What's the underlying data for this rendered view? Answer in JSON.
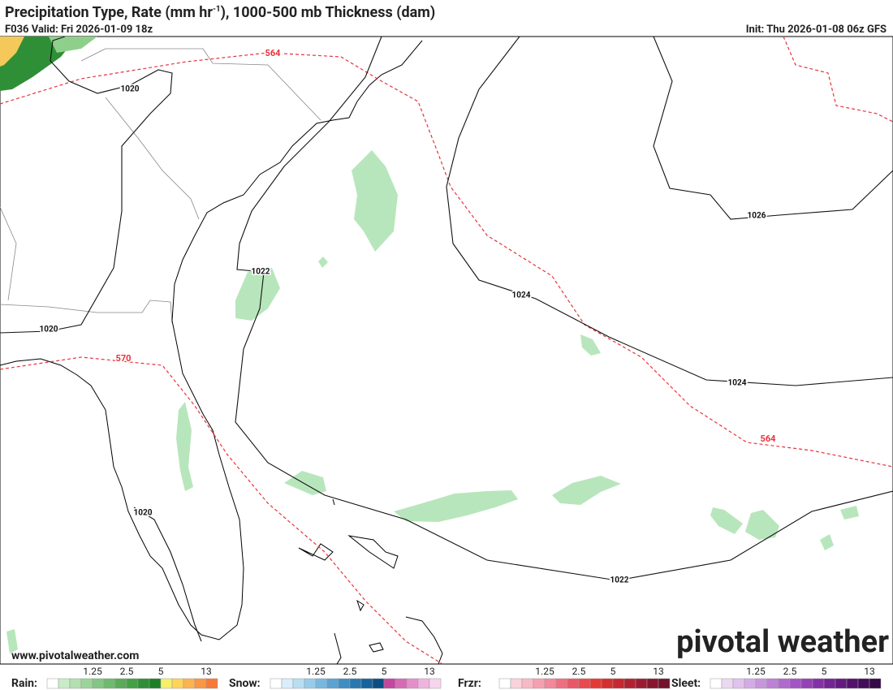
{
  "header": {
    "title_pre": "Precipitation Type, Rate (mm hr",
    "title_sup": "-1",
    "title_post": "), 1000-500 mb Thickness (dam)",
    "valid": "F036 Valid: Fri 2026-01-09 18z",
    "init": "Init: Thu 2026-01-08 06z GFS"
  },
  "map": {
    "isobar_labels": [
      "1020",
      "1020",
      "1020",
      "1022",
      "1022",
      "1024",
      "1024",
      "1026"
    ],
    "thickness_labels": [
      "564",
      "564",
      "570"
    ]
  },
  "footer": {
    "url": "www.pivotalweather.com",
    "logo": "pivotal weather"
  },
  "legend": {
    "groups": [
      {
        "label": "Rain:",
        "ticks": [
          "1.25",
          "2.5",
          "5",
          "13"
        ],
        "colors": [
          "#ffffff",
          "#c8ecc8",
          "#b2e0b0",
          "#9bd49a",
          "#84c684",
          "#6fba6e",
          "#5aaa5a",
          "#46a046",
          "#2f8f36",
          "#1d7e28",
          "#f5f06a",
          "#fdd35a",
          "#fcb451",
          "#f99744",
          "#f77a38"
        ]
      },
      {
        "label": "Snow:",
        "ticks": [
          "1.25",
          "2.5",
          "5",
          "13"
        ],
        "colors": [
          "#ffffff",
          "#d8eefa",
          "#b9def3",
          "#98cbea",
          "#78b8e0",
          "#5aa3d3",
          "#3f8dc3",
          "#2a78b0",
          "#17639b",
          "#0b4e84",
          "#c3479e",
          "#d66bb5",
          "#e58fca",
          "#f0b3de",
          "#f8d5ee"
        ]
      },
      {
        "label": "Frzr:",
        "ticks": [
          "1.25",
          "2.5",
          "5",
          "13"
        ],
        "colors": [
          "#ffffff",
          "#fbd2dc",
          "#f8b9c6",
          "#f5a0b0",
          "#f2889a",
          "#ee7080",
          "#ea5868",
          "#e84a4e",
          "#e33a36",
          "#d42e2e",
          "#c42830",
          "#b02232",
          "#9b1c32",
          "#861630",
          "#72122c"
        ]
      },
      {
        "label": "Sleet:",
        "ticks": [
          "1.25",
          "2.5",
          "5",
          "13"
        ],
        "colors": [
          "#ffffff",
          "#ecd8f3",
          "#e0c2ec",
          "#d4ace4",
          "#c896dc",
          "#bc80d4",
          "#b06acc",
          "#a454c4",
          "#9440b6",
          "#8430a6",
          "#742494",
          "#641a80",
          "#54126c",
          "#440c58",
          "#360846"
        ]
      }
    ]
  }
}
